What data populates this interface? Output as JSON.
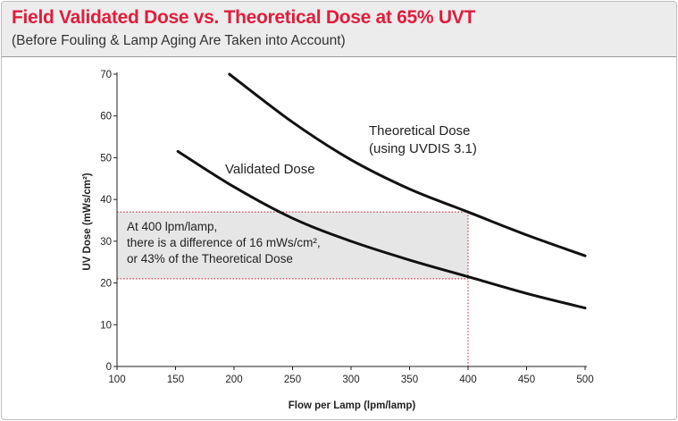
{
  "chart_data": {
    "type": "line",
    "title": "Field Validated Dose vs. Theoretical Dose at 65% UVT",
    "subtitle": "(Before Fouling & Lamp Aging Are Taken into Account)",
    "xlabel": "Flow per Lamp (lpm/lamp)",
    "ylabel": "UV Dose (mWs/cm²)",
    "xlim": [
      100,
      500
    ],
    "ylim": [
      0,
      70
    ],
    "xticks": [
      100,
      150,
      200,
      250,
      300,
      350,
      400,
      450,
      500
    ],
    "yticks": [
      0,
      10,
      20,
      30,
      40,
      50,
      60,
      70
    ],
    "grid": false,
    "series": [
      {
        "name": "Theoretical Dose",
        "label_lines": [
          "Theoretical Dose",
          "(using UVDIS 3.1)"
        ],
        "color": "#111111",
        "x": [
          196,
          250,
          300,
          350,
          400,
          450,
          500
        ],
        "y": [
          70,
          58.5,
          49.5,
          42.5,
          37,
          31.5,
          26.5
        ]
      },
      {
        "name": "Validated Dose",
        "label_lines": [
          "Validated Dose"
        ],
        "color": "#111111",
        "x": [
          152,
          200,
          250,
          300,
          350,
          400,
          450,
          500
        ],
        "y": [
          51.5,
          43,
          35.5,
          30,
          25.5,
          21.5,
          17.5,
          14
        ]
      }
    ],
    "annotation": {
      "x": 400,
      "y_top": 37,
      "y_bottom": 21,
      "guide_color": "#c8102e",
      "box_fill": "#e6e6e6",
      "lines": [
        "At 400 lpm/lamp,",
        "there is a difference of 16 mWs/cm²,",
        "or 43% of the Theoretical Dose"
      ]
    }
  }
}
